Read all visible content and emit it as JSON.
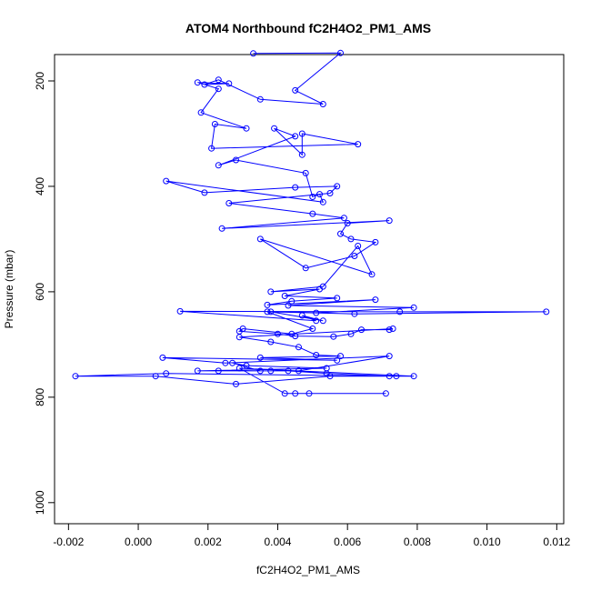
{
  "chart_data": {
    "type": "line",
    "title": "ATOM4 Northbound fC2H4O2_PM1_AMS",
    "xlabel": "fC2H4O2_PM1_AMS",
    "ylabel": "Pressure (mbar)",
    "xlim": [
      -0.0024,
      0.0122
    ],
    "ylim": [
      1040,
      150
    ],
    "y_reversed": true,
    "grid": false,
    "legend": "none",
    "color": "#0000ff",
    "marker": "open-circle",
    "x_ticks": [
      {
        "value": -0.002,
        "label": "-0.002"
      },
      {
        "value": 0.0,
        "label": "0.000"
      },
      {
        "value": 0.002,
        "label": "0.002"
      },
      {
        "value": 0.004,
        "label": "0.004"
      },
      {
        "value": 0.006,
        "label": "0.006"
      },
      {
        "value": 0.008,
        "label": "0.008"
      },
      {
        "value": 0.01,
        "label": "0.010"
      },
      {
        "value": 0.012,
        "label": "0.012"
      }
    ],
    "y_ticks": [
      {
        "value": 200,
        "label": "200"
      },
      {
        "value": 400,
        "label": "400"
      },
      {
        "value": 600,
        "label": "600"
      },
      {
        "value": 800,
        "label": "800"
      },
      {
        "value": 1000,
        "label": "1000"
      }
    ],
    "x": [
      0.0033,
      0.0058,
      0.0045,
      0.0053,
      0.0035,
      0.0023,
      0.0019,
      0.0026,
      0.0017,
      0.0023,
      0.0018,
      0.0031,
      0.0022,
      0.0021,
      0.0063,
      0.0047,
      0.0047,
      0.0039,
      0.0045,
      0.0023,
      0.0028,
      0.0048,
      0.005,
      0.0052,
      0.0053,
      0.0008,
      0.0019,
      0.0045,
      0.0057,
      0.0055,
      0.0026,
      0.005,
      0.0059,
      0.0024,
      0.0072,
      0.006,
      0.0058,
      0.0061,
      0.0068,
      0.0062,
      0.0048,
      0.0035,
      0.0067,
      0.0063,
      0.0053,
      0.0038,
      0.0052,
      0.0042,
      0.0057,
      0.0044,
      0.0037,
      0.0068,
      0.0043,
      0.0079,
      0.0051,
      0.0038,
      0.0053,
      0.0047,
      0.0051,
      0.0012,
      0.0075,
      0.0117,
      0.0062,
      0.0037,
      0.005,
      0.0044,
      0.003,
      0.0029,
      0.004,
      0.0045,
      0.0056,
      0.0061,
      0.0064,
      0.0072,
      0.0073,
      0.0029,
      0.0038,
      0.0046,
      0.0051,
      0.0058,
      0.0035,
      0.0057,
      0.0007,
      0.0025,
      0.0072,
      0.0046,
      0.0035,
      0.0027,
      0.0031,
      0.0054,
      0.0017,
      0.0023,
      0.0038,
      0.0043,
      0.0054,
      0.0072,
      0.0008,
      -0.0018,
      0.0005,
      0.0028,
      0.0055,
      0.0074,
      0.0079,
      0.0029,
      0.0042,
      0.0045,
      0.0049,
      0.0071
    ],
    "y": [
      148,
      147,
      218,
      244,
      235,
      198,
      207,
      205,
      203,
      215,
      260,
      290,
      282,
      328,
      320,
      300,
      340,
      290,
      305,
      360,
      350,
      375,
      420,
      415,
      430,
      390,
      412,
      402,
      400,
      413,
      432,
      452,
      460,
      480,
      465,
      470,
      490,
      500,
      506,
      532,
      555,
      500,
      567,
      513,
      590,
      600,
      595,
      608,
      612,
      618,
      625,
      615,
      626,
      630,
      640,
      638,
      655,
      645,
      655,
      637,
      638,
      638,
      642,
      638,
      670,
      680,
      670,
      675,
      680,
      684,
      685,
      680,
      672,
      672,
      670,
      686,
      695,
      705,
      720,
      722,
      725,
      730,
      725,
      735,
      722,
      750,
      750,
      735,
      740,
      745,
      750,
      750,
      750,
      750,
      755,
      760,
      755,
      760,
      760,
      775,
      760,
      760,
      760,
      745,
      793,
      793,
      793,
      793
    ]
  }
}
